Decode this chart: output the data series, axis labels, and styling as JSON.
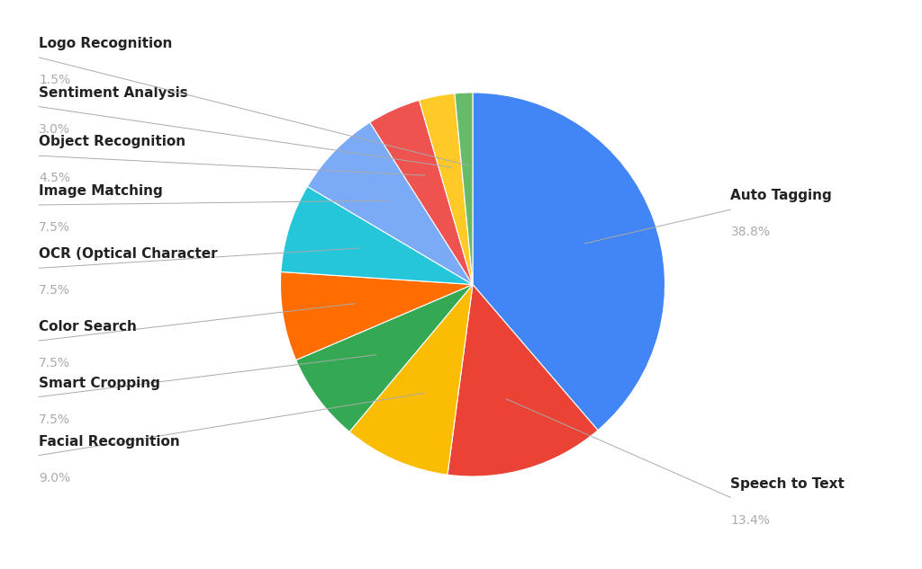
{
  "labels": [
    "Auto Tagging",
    "Speech to Text",
    "Facial Recognition",
    "Smart Cropping",
    "Color Search",
    "OCR (Optical Character",
    "Image Matching",
    "Object Recognition",
    "Sentiment Analysis",
    "Logo Recognition"
  ],
  "values": [
    38.8,
    13.4,
    9.0,
    7.5,
    7.5,
    7.5,
    7.5,
    4.5,
    3.0,
    1.5
  ],
  "colors": [
    "#4285F4",
    "#EA4335",
    "#FBBC04",
    "#34A853",
    "#FF6D00",
    "#26C6DA",
    "#7BAAF7",
    "#EF5350",
    "#FFCA28",
    "#66BB6A"
  ],
  "percentages": [
    "38.8%",
    "13.4%",
    "9.0%",
    "7.5%",
    "7.5%",
    "7.5%",
    "7.5%",
    "4.5%",
    "3.0%",
    "1.5%"
  ],
  "background_color": "#ffffff",
  "label_fontsize": 11,
  "pct_fontsize": 10
}
